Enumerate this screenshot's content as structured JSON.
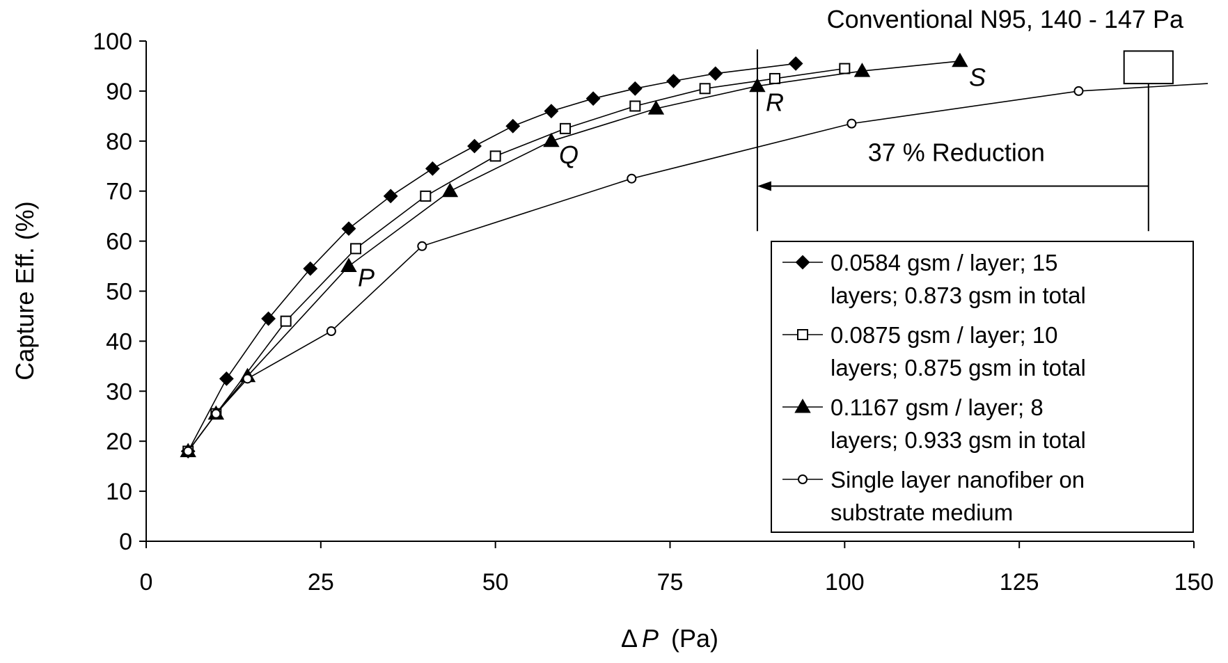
{
  "chart_data": {
    "type": "line",
    "xlabel_symbol": "Δ",
    "xlabel_var": "P",
    "xlabel_unit": "(Pa)",
    "ylabel": "Capture Eff. (%)",
    "xlim": [
      0,
      150
    ],
    "ylim": [
      0,
      100
    ],
    "xticks": [
      "0",
      "25",
      "50",
      "75",
      "100",
      "125",
      "150"
    ],
    "yticks": [
      "0",
      "10",
      "20",
      "30",
      "40",
      "50",
      "60",
      "70",
      "80",
      "90",
      "100"
    ],
    "grid": false,
    "legend_position": "bottom-right",
    "series": [
      {
        "name": "0.0584 gsm / layer; 15 layers; 0.873 gsm in total",
        "legend_lines": [
          "0.0584 gsm / layer; 15",
          "layers; 0.873 gsm in total"
        ],
        "marker": "diamond-filled",
        "x": [
          6,
          11.5,
          17.5,
          23.5,
          29,
          35,
          41,
          47,
          52.5,
          58,
          64,
          70,
          75.5,
          81.5,
          93
        ],
        "y": [
          18,
          32.5,
          44.5,
          54.5,
          62.5,
          69,
          74.5,
          79,
          83,
          86,
          88.5,
          90.5,
          92,
          93.5,
          95.5
        ]
      },
      {
        "name": "0.0875 gsm / layer; 10 layers; 0.875 gsm in total",
        "legend_lines": [
          "0.0875 gsm / layer; 10",
          "layers; 0.875 gsm in total"
        ],
        "marker": "square-open",
        "x": [
          6,
          10,
          20,
          30,
          40,
          50,
          60,
          70,
          80,
          90,
          100
        ],
        "y": [
          18,
          25.5,
          44,
          58.5,
          69,
          77,
          82.5,
          87,
          90.5,
          92.5,
          94.5
        ]
      },
      {
        "name": "0.1167 gsm / layer; 8 layers; 0.933 gsm in total",
        "legend_lines": [
          "0.1167 gsm / layer; 8",
          "layers; 0.933 gsm in total"
        ],
        "marker": "triangle-filled",
        "x": [
          6,
          10,
          14.5,
          29,
          43.5,
          58,
          73,
          87.5,
          102.5,
          116.5
        ],
        "y": [
          18,
          25.5,
          33,
          55,
          70,
          80,
          86.5,
          91,
          94,
          96
        ]
      },
      {
        "name": "Single layer nanofiber on substrate medium",
        "legend_lines": [
          "Single layer nanofiber on",
          "substrate medium"
        ],
        "marker": "circle-open",
        "x": [
          6,
          10,
          14.5,
          26.5,
          39.5,
          69.5,
          101,
          133.5,
          152
        ],
        "y": [
          18,
          25.5,
          32.5,
          42,
          59,
          72.5,
          83.5,
          90,
          91.5
        ]
      }
    ],
    "annotations": {
      "conventional": "Conventional N95, 140 - 147 Pa",
      "conventional_x_range": [
        140,
        147
      ],
      "reduction": "37 % Reduction",
      "reduction_arrow": {
        "from_x": 143.5,
        "to_x": 87.5,
        "y": 71
      },
      "vertical_line_x": 87.5,
      "point_labels": [
        {
          "text": "P",
          "x": 31.5,
          "y": 51
        },
        {
          "text": "Q",
          "x": 60.5,
          "y": 75.5
        },
        {
          "text": "R",
          "x": 90,
          "y": 86
        },
        {
          "text": "S",
          "x": 119,
          "y": 91
        }
      ]
    }
  }
}
